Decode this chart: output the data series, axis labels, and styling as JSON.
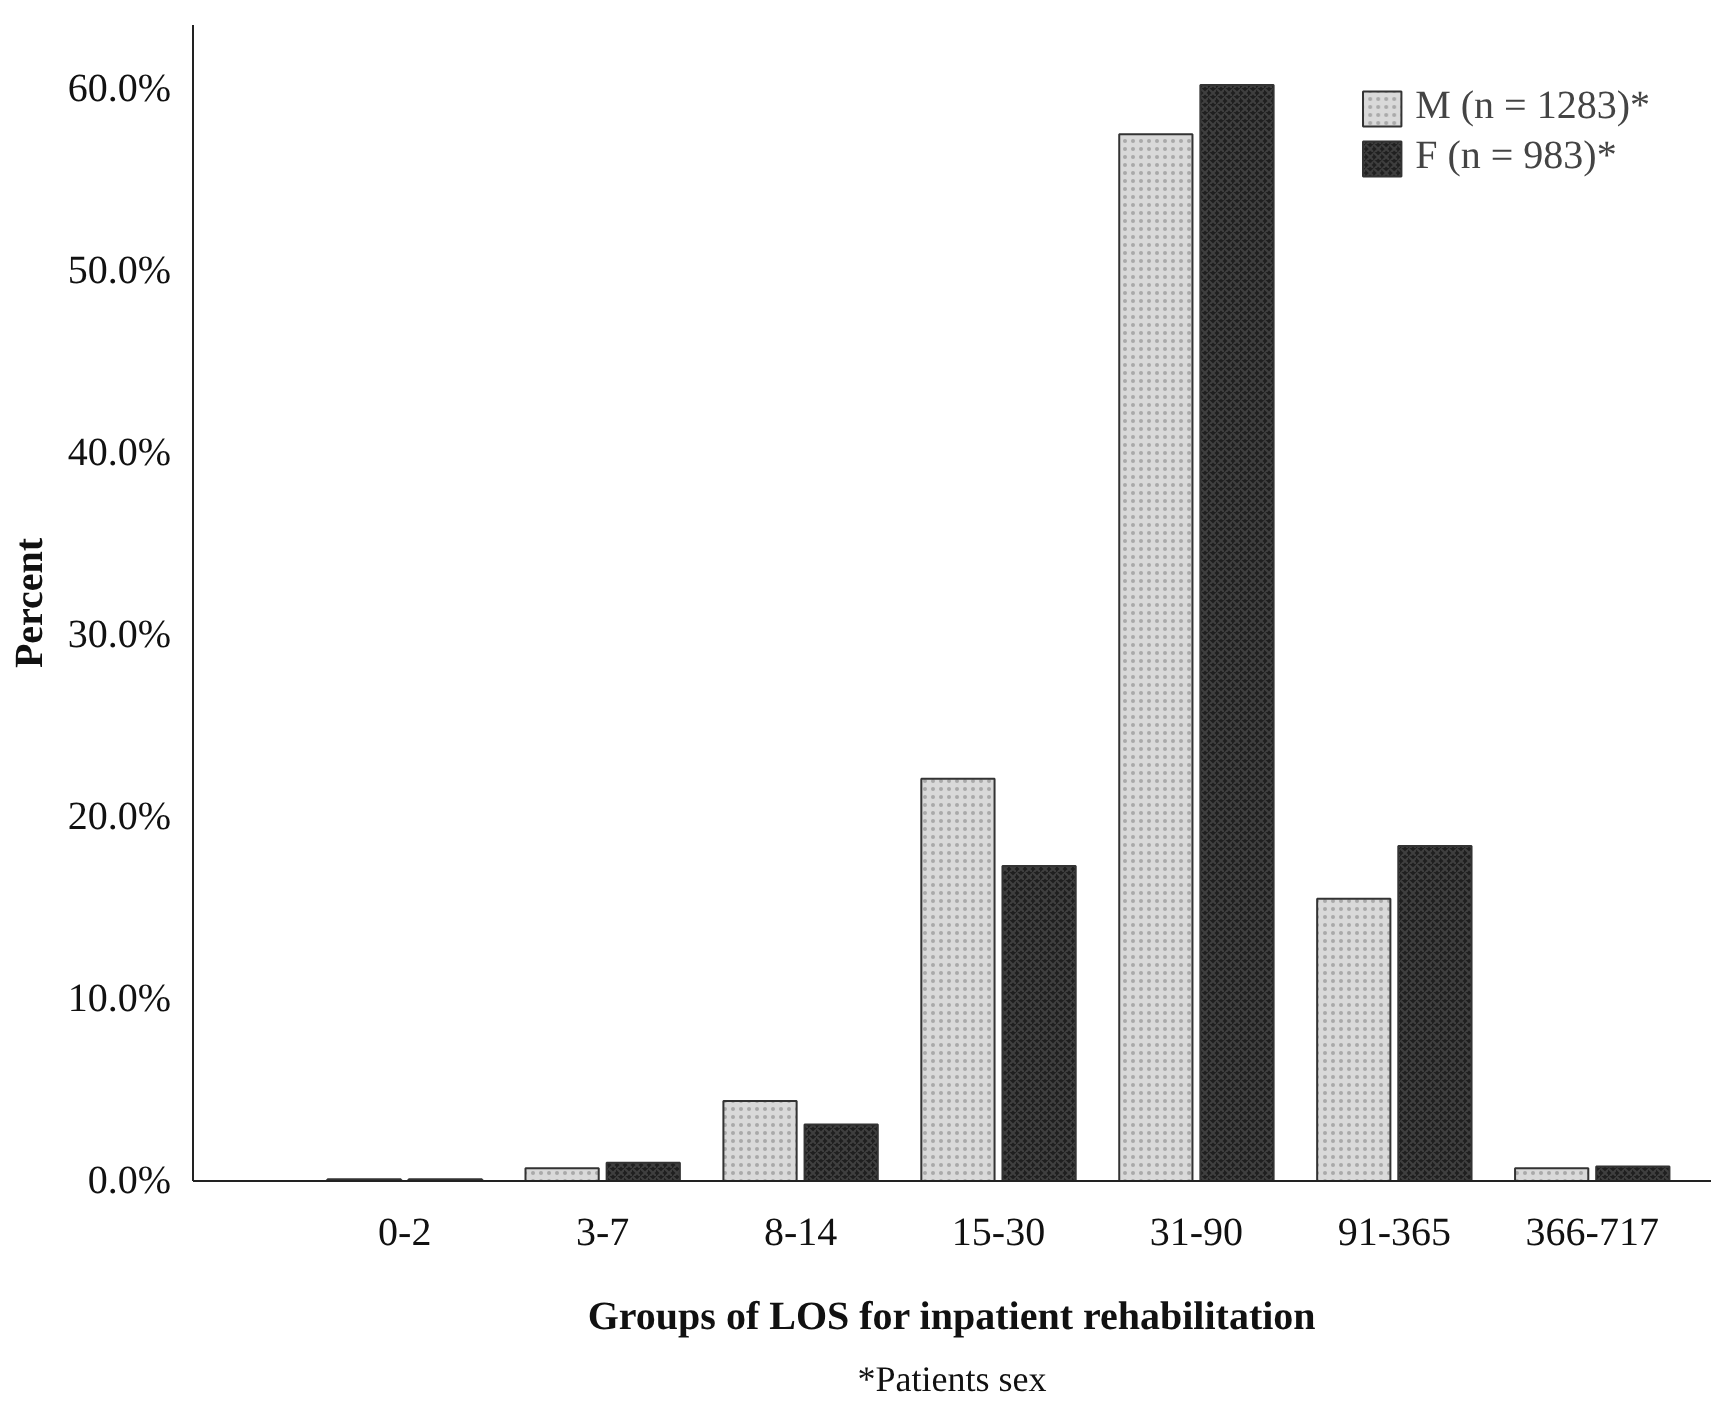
{
  "chart_data": {
    "type": "bar",
    "xlabel": "Groups of LOS for inpatient rehabilitation",
    "ylabel": "Percent",
    "categories": [
      "0-2",
      "3-7",
      "8-14",
      "15-30",
      "31-90",
      "91-365",
      "366-717"
    ],
    "series": [
      {
        "name": "M (n = 1283)*",
        "color": "#d9d9d9",
        "values": [
          0.1,
          0.7,
          4.4,
          22.1,
          57.5,
          15.5,
          0.7
        ]
      },
      {
        "name": "F (n = 983)*",
        "color": "#1f1f1f",
        "values": [
          0.1,
          1.0,
          3.1,
          17.3,
          60.2,
          18.4,
          0.8
        ]
      }
    ],
    "ylim": [
      0,
      63.5
    ],
    "yticks": [
      {
        "value": 0,
        "label": "0.0%"
      },
      {
        "value": 10,
        "label": "10.0%"
      },
      {
        "value": 20,
        "label": "20.0%"
      },
      {
        "value": 30,
        "label": "30.0%"
      },
      {
        "value": 40,
        "label": "40.0%"
      },
      {
        "value": 50,
        "label": "50.0%"
      },
      {
        "value": 60,
        "label": "60.0%"
      }
    ],
    "grid": false,
    "legend": "top right",
    "annotations": [
      "*Patients sex"
    ]
  }
}
